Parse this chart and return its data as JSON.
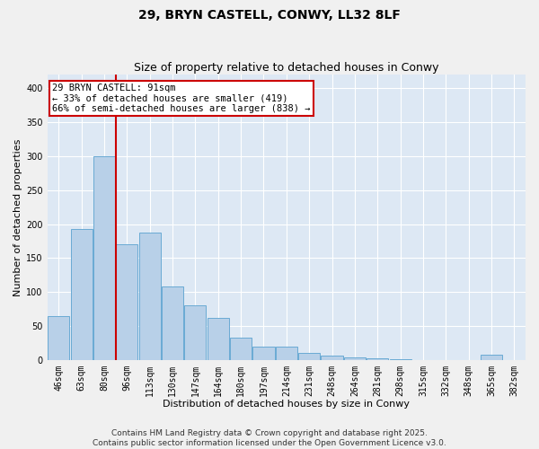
{
  "title": "29, BRYN CASTELL, CONWY, LL32 8LF",
  "subtitle": "Size of property relative to detached houses in Conwy",
  "xlabel": "Distribution of detached houses by size in Conwy",
  "ylabel": "Number of detached properties",
  "categories": [
    "46sqm",
    "63sqm",
    "80sqm",
    "96sqm",
    "113sqm",
    "130sqm",
    "147sqm",
    "164sqm",
    "180sqm",
    "197sqm",
    "214sqm",
    "231sqm",
    "248sqm",
    "264sqm",
    "281sqm",
    "298sqm",
    "315sqm",
    "332sqm",
    "348sqm",
    "365sqm",
    "382sqm"
  ],
  "values": [
    65,
    193,
    300,
    170,
    188,
    108,
    80,
    62,
    33,
    20,
    20,
    10,
    6,
    4,
    2,
    1,
    0,
    0,
    0,
    7,
    0
  ],
  "bar_color": "#b8d0e8",
  "bar_edge_color": "#6aaad4",
  "vline_pos": 2.5,
  "vline_color": "#cc0000",
  "annotation_text_line1": "29 BRYN CASTELL: 91sqm",
  "annotation_text_line2": "← 33% of detached houses are smaller (419)",
  "annotation_text_line3": "66% of semi-detached houses are larger (838) →",
  "annotation_box_color": "#cc0000",
  "ylim": [
    0,
    420
  ],
  "yticks": [
    0,
    50,
    100,
    150,
    200,
    250,
    300,
    350,
    400
  ],
  "plot_bg_color": "#dde8f4",
  "fig_bg_color": "#f0f0f0",
  "grid_color": "#ffffff",
  "footer_line1": "Contains HM Land Registry data © Crown copyright and database right 2025.",
  "footer_line2": "Contains public sector information licensed under the Open Government Licence v3.0.",
  "title_fontsize": 10,
  "subtitle_fontsize": 9,
  "xlabel_fontsize": 8,
  "ylabel_fontsize": 8,
  "tick_fontsize": 7,
  "annot_fontsize": 7.5,
  "footer_fontsize": 6.5
}
